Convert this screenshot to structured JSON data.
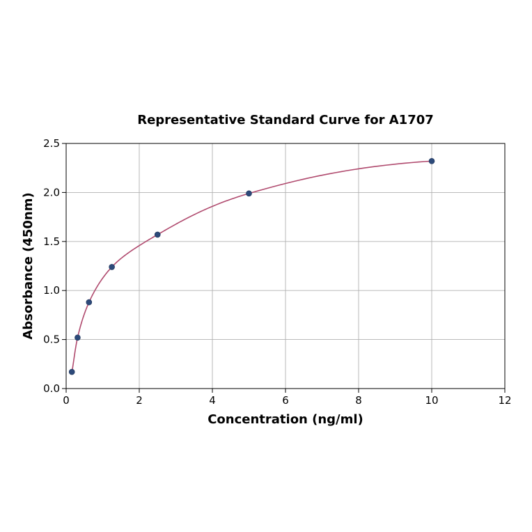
{
  "chart_data": {
    "type": "scatter",
    "title": "Representative Standard Curve for A1707",
    "xlabel": "Concentration (ng/ml)",
    "ylabel": "Absorbance (450nm)",
    "xlim": [
      0,
      12
    ],
    "ylim": [
      0,
      2.5
    ],
    "xticks": [
      0,
      2,
      4,
      6,
      8,
      10,
      12
    ],
    "xtick_labels": [
      "0",
      "2",
      "4",
      "6",
      "8",
      "10",
      "12"
    ],
    "yticks": [
      0,
      0.5,
      1.0,
      1.5,
      2.0,
      2.5
    ],
    "ytick_labels": [
      "0.0",
      "0.5",
      "1.0",
      "1.5",
      "2.0",
      "2.5"
    ],
    "grid": true,
    "series": [
      {
        "kind": "points",
        "x": [
          0.156,
          0.313,
          0.625,
          1.25,
          2.5,
          5,
          10
        ],
        "y": [
          0.17,
          0.52,
          0.88,
          1.24,
          1.57,
          1.99,
          2.32
        ],
        "color": "#2d4a7a"
      },
      {
        "kind": "fit-curve",
        "color": "#b04a6e"
      }
    ]
  }
}
